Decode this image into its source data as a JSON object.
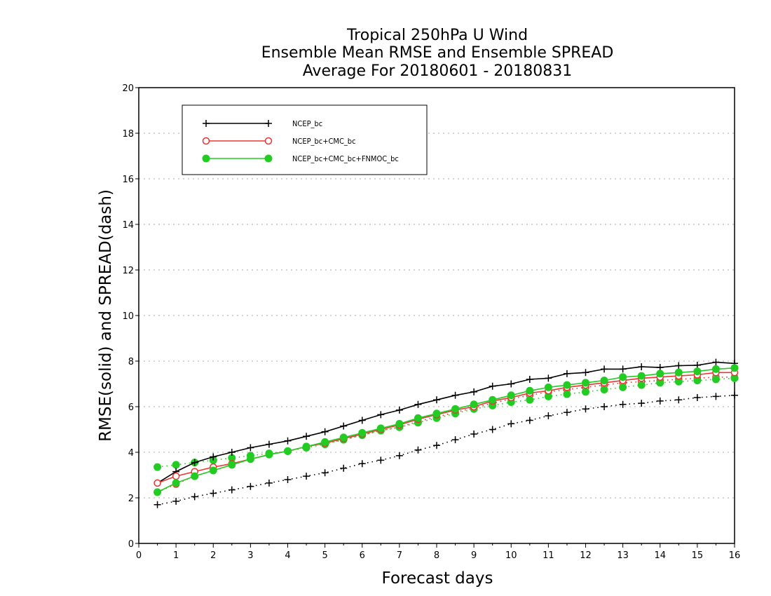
{
  "chart_data": {
    "type": "line",
    "title": [
      "Tropical 250hPa U Wind",
      "Ensemble Mean RMSE and Ensemble SPREAD",
      "Average For 20180601 - 20180831"
    ],
    "xlabel": "Forecast days",
    "ylabel": "RMSE(solid) and SPREAD(dash)",
    "xlim": [
      0,
      16
    ],
    "ylim": [
      0,
      20
    ],
    "xticks": [
      "0",
      "1",
      "2",
      "3",
      "4",
      "5",
      "6",
      "7",
      "8",
      "9",
      "10",
      "11",
      "12",
      "13",
      "14",
      "15",
      "16"
    ],
    "yticks": [
      "0",
      "2",
      "4",
      "6",
      "8",
      "10",
      "12",
      "14",
      "16",
      "18",
      "20"
    ],
    "grid": true,
    "legend_position": "top-left",
    "x": [
      0.5,
      1,
      1.5,
      2,
      2.5,
      3,
      3.5,
      4,
      4.5,
      5,
      5.5,
      6,
      6.5,
      7,
      7.5,
      8,
      8.5,
      9,
      9.5,
      10,
      10.5,
      11,
      11.5,
      12,
      12.5,
      13,
      13.5,
      14,
      14.5,
      15,
      15.5,
      16
    ],
    "series": [
      {
        "name": "NCEP_bc",
        "color": "#000000",
        "marker": "plus",
        "rmse": [
          2.65,
          3.15,
          3.55,
          3.8,
          4.0,
          4.2,
          4.35,
          4.5,
          4.7,
          4.9,
          5.15,
          5.4,
          5.65,
          5.85,
          6.1,
          6.3,
          6.5,
          6.65,
          6.9,
          7.0,
          7.2,
          7.25,
          7.45,
          7.5,
          7.65,
          7.65,
          7.75,
          7.72,
          7.8,
          7.82,
          7.95,
          7.9
        ],
        "spread": [
          1.7,
          1.85,
          2.05,
          2.2,
          2.35,
          2.5,
          2.65,
          2.8,
          2.95,
          3.1,
          3.3,
          3.5,
          3.65,
          3.85,
          4.1,
          4.3,
          4.55,
          4.8,
          5.0,
          5.25,
          5.4,
          5.6,
          5.75,
          5.9,
          6.0,
          6.1,
          6.15,
          6.25,
          6.3,
          6.4,
          6.45,
          6.5
        ]
      },
      {
        "name": "NCEP_bc+CMC_bc",
        "color": "#ee3333",
        "marker": "circle-open",
        "rmse": [
          2.65,
          2.95,
          3.15,
          3.35,
          3.5,
          3.7,
          3.9,
          4.05,
          4.25,
          4.4,
          4.6,
          4.8,
          5.0,
          5.2,
          5.45,
          5.65,
          5.85,
          6.0,
          6.25,
          6.4,
          6.6,
          6.7,
          6.85,
          6.95,
          7.05,
          7.15,
          7.25,
          7.3,
          7.35,
          7.4,
          7.5,
          7.5
        ],
        "spread": [
          2.25,
          2.6,
          2.95,
          3.2,
          3.45,
          3.7,
          3.9,
          4.05,
          4.25,
          4.4,
          4.55,
          4.75,
          4.95,
          5.1,
          5.35,
          5.55,
          5.75,
          5.95,
          6.15,
          6.35,
          6.5,
          6.65,
          6.75,
          6.85,
          6.95,
          7.05,
          7.1,
          7.15,
          7.2,
          7.25,
          7.3,
          7.3
        ]
      },
      {
        "name": "NCEP_bc+CMC_bc+FNMOC_bc",
        "color": "#22cc22",
        "marker": "circle-filled",
        "rmse": [
          2.25,
          2.65,
          2.95,
          3.2,
          3.45,
          3.7,
          3.9,
          4.05,
          4.25,
          4.45,
          4.65,
          4.85,
          5.05,
          5.25,
          5.5,
          5.7,
          5.9,
          6.1,
          6.3,
          6.5,
          6.7,
          6.85,
          6.95,
          7.05,
          7.15,
          7.3,
          7.35,
          7.45,
          7.5,
          7.55,
          7.65,
          7.7
        ],
        "spread": [
          3.35,
          3.45,
          3.55,
          3.65,
          3.75,
          3.85,
          3.95,
          4.05,
          4.2,
          4.35,
          4.55,
          4.75,
          4.95,
          5.1,
          5.3,
          5.5,
          5.7,
          5.9,
          6.05,
          6.2,
          6.3,
          6.45,
          6.55,
          6.65,
          6.75,
          6.85,
          6.95,
          7.05,
          7.1,
          7.15,
          7.2,
          7.25
        ]
      }
    ]
  }
}
